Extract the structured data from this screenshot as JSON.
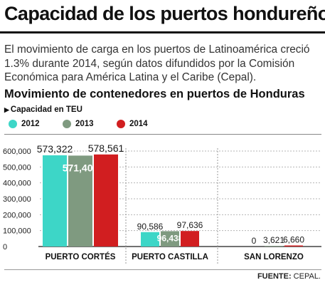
{
  "title": "Capacidad de los puertos hondureños",
  "intro": "El movimiento de carga en los puertos de Latinoamérica creció 1.3% durante 2014, según datos difundidos por la Comisión Económica para América Latina y el Caribe (Cepal).",
  "source_label": "FUENTE:",
  "source_value": " CEPAL.",
  "colors": {
    "2012": "#3dd6c7",
    "2013": "#7f9a80",
    "2014": "#d11e20"
  },
  "chart_data": {
    "type": "bar",
    "title": "Movimiento de contenedores en puertos de Honduras",
    "subtitle": "Capacidad en TEU",
    "xlabel": "",
    "ylabel": "",
    "ylim": [
      0,
      600000
    ],
    "yticks": [
      0,
      100000,
      200000,
      300000,
      400000,
      500000,
      600000
    ],
    "ytick_labels": [
      "0",
      "100,000",
      "200,000",
      "300,000",
      "400,000",
      "500,000",
      "600,000"
    ],
    "categories": [
      "PUERTO CORTÉS",
      "PUERTO CASTILLA",
      "SAN LORENZO"
    ],
    "series": [
      {
        "name": "2012",
        "values": [
          573322,
          90586,
          0
        ],
        "labels": [
          "573,322",
          "90,586",
          "0"
        ]
      },
      {
        "name": "2013",
        "values": [
          571408,
          96438,
          3621
        ],
        "labels": [
          "571,408",
          "96,438",
          "3,621"
        ]
      },
      {
        "name": "2014",
        "values": [
          578561,
          97636,
          6660
        ],
        "labels": [
          "578,561",
          "97,636",
          "6,660"
        ]
      }
    ],
    "grid": true,
    "legend_position": "top-left"
  }
}
